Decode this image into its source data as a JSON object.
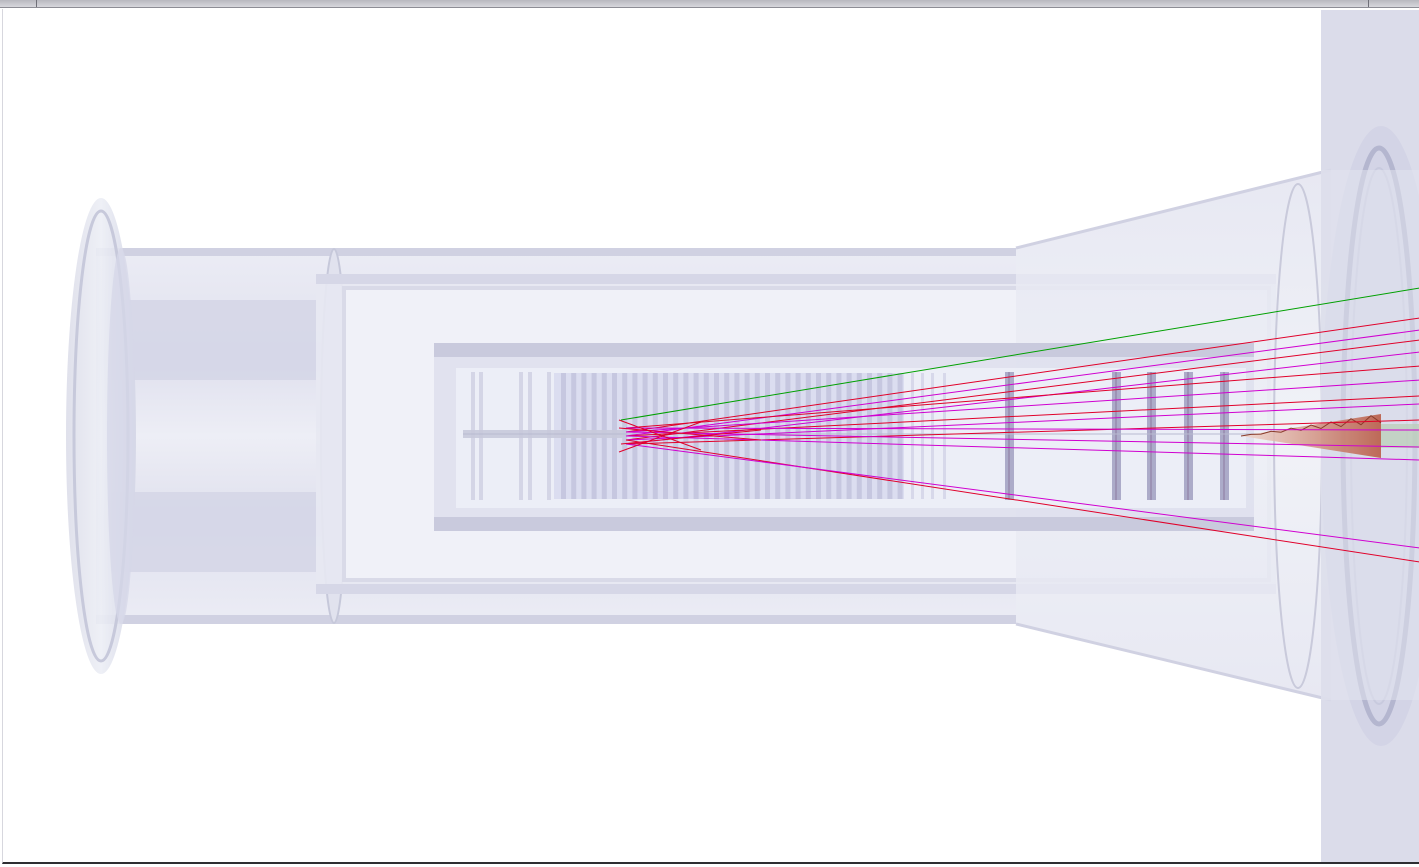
{
  "window": {
    "title_bar": ""
  },
  "viewer": {
    "background": "#ffffff",
    "volume_color": "#d6d8ec",
    "volume_edge_color": "#c0c2d8",
    "track_colors": {
      "positive": "#e0002a",
      "negative": "#d000d0",
      "neutral": "#00a000"
    }
  }
}
